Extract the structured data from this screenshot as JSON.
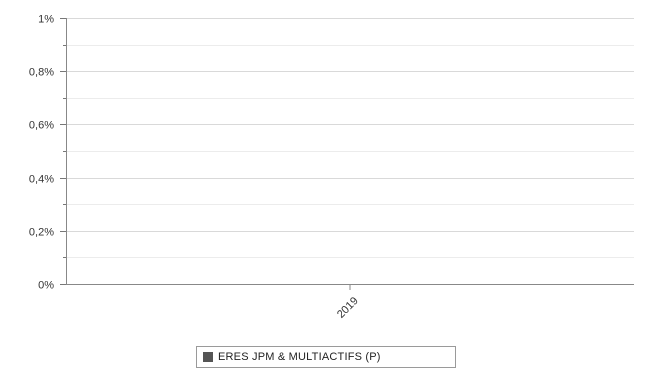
{
  "chart_data": {
    "type": "bar",
    "categories": [
      "2019"
    ],
    "series": [
      {
        "name": "ERES JPM & MULTIACTIFS (P)",
        "values": [
          0
        ],
        "color": "#555555"
      }
    ],
    "ylim": [
      0,
      1
    ],
    "yticks": [
      {
        "value": 0,
        "label": "0%"
      },
      {
        "value": 0.2,
        "label": "0,2%"
      },
      {
        "value": 0.4,
        "label": "0,4%"
      },
      {
        "value": 0.6,
        "label": "0,6%"
      },
      {
        "value": 0.8,
        "label": "0,8%"
      },
      {
        "value": 1,
        "label": "1%"
      }
    ],
    "grid": true,
    "legend_position": "bottom"
  }
}
